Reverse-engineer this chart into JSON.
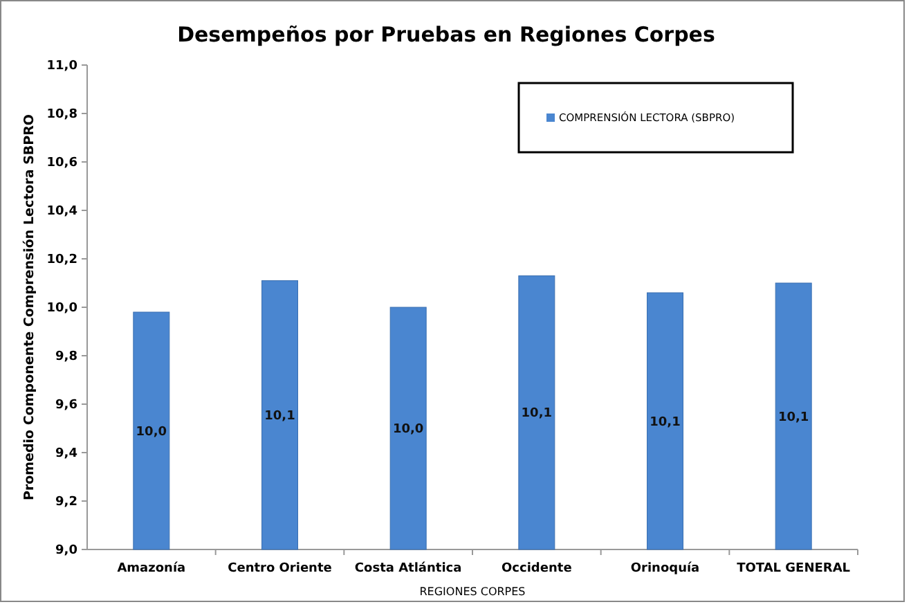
{
  "chart_data": {
    "type": "bar",
    "title": "Desempeños por Pruebas en Regiones Corpes",
    "xlabel": "REGIONES CORPES",
    "ylabel": "Promedio Componente Comprensión Lectora SBPRO",
    "categories": [
      "Amazonía",
      "Centro Oriente",
      "Costa Atlántica",
      "Occidente",
      "Orinoquía",
      "TOTAL GENERAL"
    ],
    "series": [
      {
        "name": "COMPRENSIÓN LECTORA (SBPRO)",
        "color": "#4a86d0",
        "values": [
          9.98,
          10.11,
          10.0,
          10.13,
          10.06,
          10.1
        ],
        "value_labels": [
          "10,0",
          "10,1",
          "10,0",
          "10,1",
          "10,1",
          "10,1"
        ]
      }
    ],
    "ylim": [
      9.0,
      11.0
    ],
    "yticks": [
      {
        "value": 9.0,
        "label": "9,0"
      },
      {
        "value": 9.2,
        "label": "9,2"
      },
      {
        "value": 9.4,
        "label": "9,4"
      },
      {
        "value": 9.6,
        "label": "9,6"
      },
      {
        "value": 9.8,
        "label": "9,8"
      },
      {
        "value": 10.0,
        "label": "10,0"
      },
      {
        "value": 10.2,
        "label": "10,2"
      },
      {
        "value": 10.4,
        "label": "10,4"
      },
      {
        "value": 10.6,
        "label": "10,6"
      },
      {
        "value": 10.8,
        "label": "10,8"
      },
      {
        "value": 11.0,
        "label": "11,0"
      }
    ],
    "grid": false,
    "legend": "top right"
  }
}
